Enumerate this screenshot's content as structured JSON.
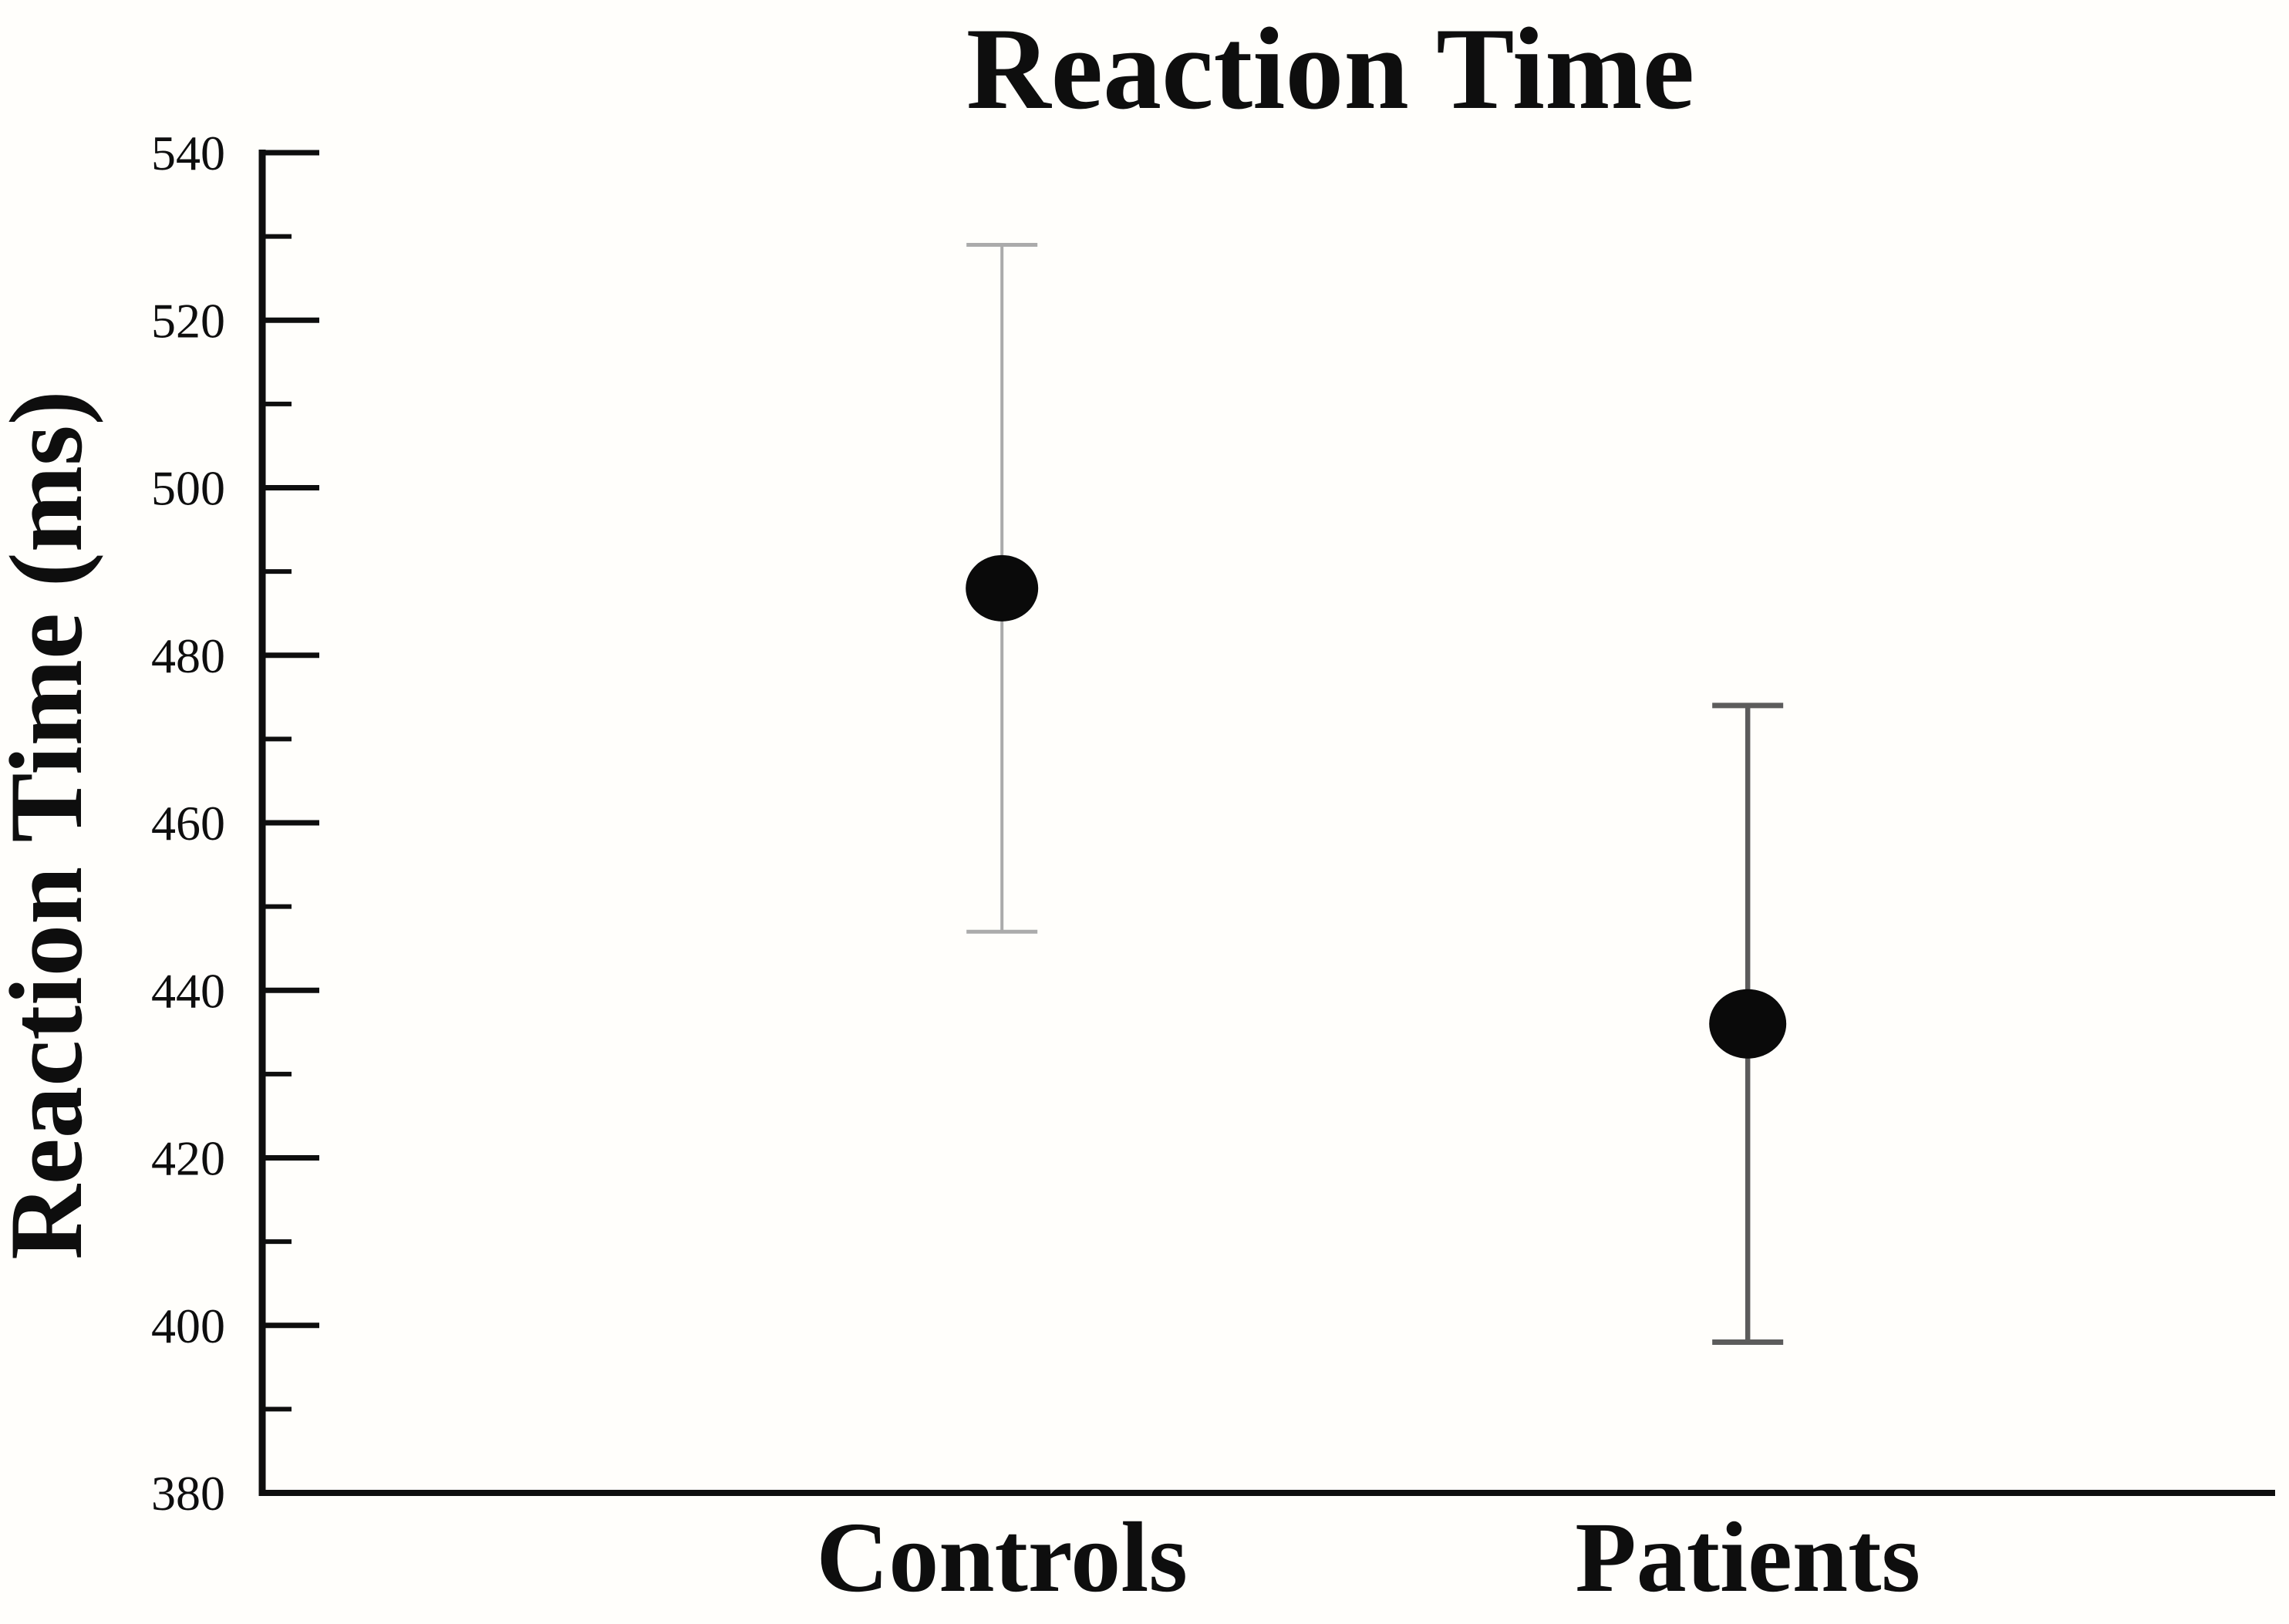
{
  "chart_data": {
    "type": "scatter",
    "title": "Reaction Time",
    "xlabel": "",
    "ylabel": "Reaction Time (ms)",
    "categories": [
      "Controls",
      "Patients"
    ],
    "series": [
      {
        "name": "Controls",
        "mean": 488,
        "ci_low": 447,
        "ci_high": 529,
        "marker_color": "#0a0a0a",
        "error_bar_color": "#ababab"
      },
      {
        "name": "Patients",
        "mean": 436,
        "ci_low": 398,
        "ci_high": 474,
        "marker_color": "#0a0a0a",
        "error_bar_color": "#5c5c5c"
      }
    ],
    "ylim": [
      380,
      540
    ],
    "yticks_major": [
      380,
      400,
      420,
      440,
      460,
      480,
      500,
      520,
      540
    ],
    "yticks_minor": [
      390,
      410,
      430,
      450,
      470,
      490,
      510,
      530
    ],
    "grid": false,
    "legend": "none",
    "axis_color": "#0e0e0e",
    "background": "#fffefb",
    "marker_shape": "filled-circle",
    "error_bar_style": "line-with-caps"
  }
}
